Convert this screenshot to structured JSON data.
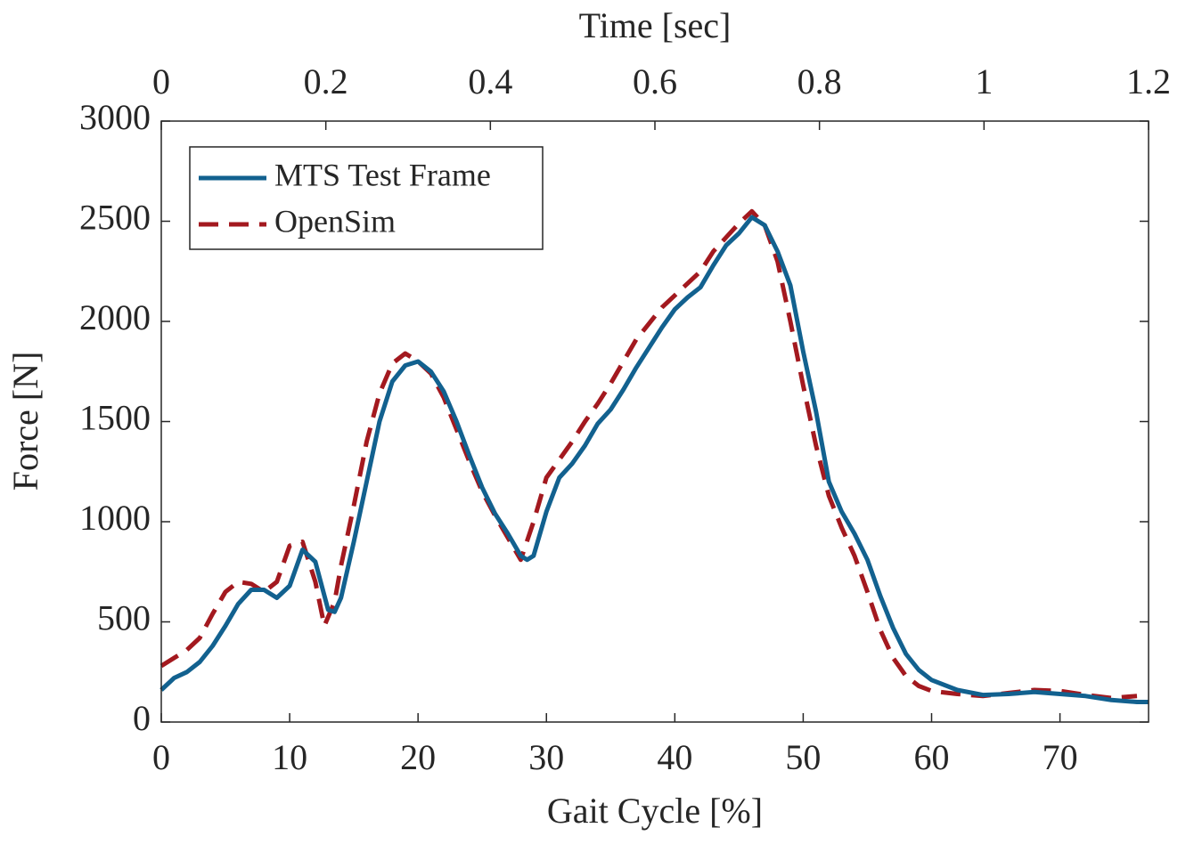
{
  "chart_data": {
    "type": "line",
    "x_label": "Gait Cycle [%]",
    "y_label": "Force [N]",
    "x2_label": "Time [sec]",
    "xlim": [
      0,
      76.9
    ],
    "xticks": [
      0,
      10,
      20,
      30,
      40,
      50,
      60,
      70
    ],
    "x2lim": [
      0,
      1.2
    ],
    "x2ticks": [
      0,
      0.2,
      0.4,
      0.6,
      0.8,
      1,
      1.2
    ],
    "ylim": [
      0,
      3000
    ],
    "yticks": [
      0,
      500,
      1000,
      1500,
      2000,
      2500,
      3000
    ],
    "legend": "upper left",
    "series": [
      {
        "name": "MTS Test Frame",
        "color": "#12618f",
        "dash": "solid",
        "x": [
          0,
          1,
          2,
          3,
          4,
          5,
          6,
          7,
          8,
          9,
          10,
          11,
          12,
          13,
          13.5,
          14,
          15,
          16,
          17,
          18,
          19,
          20,
          21,
          22,
          23,
          24,
          25,
          26,
          27,
          28,
          28.5,
          29,
          30,
          31,
          32,
          33,
          34,
          35,
          36,
          37,
          38,
          39,
          40,
          41,
          42,
          43,
          44,
          45,
          46,
          47,
          48,
          49,
          50,
          51,
          52,
          53,
          54,
          55,
          56,
          57,
          58,
          59,
          60,
          62,
          64,
          66,
          68,
          70,
          72,
          74,
          76,
          76.9
        ],
        "values": [
          160,
          220,
          250,
          300,
          380,
          480,
          590,
          660,
          660,
          620,
          680,
          860,
          800,
          560,
          550,
          620,
          900,
          1200,
          1500,
          1700,
          1780,
          1800,
          1750,
          1650,
          1500,
          1330,
          1170,
          1040,
          940,
          830,
          810,
          830,
          1050,
          1220,
          1290,
          1380,
          1490,
          1560,
          1660,
          1770,
          1870,
          1970,
          2060,
          2120,
          2170,
          2280,
          2380,
          2440,
          2520,
          2480,
          2350,
          2180,
          1850,
          1550,
          1200,
          1050,
          940,
          810,
          630,
          470,
          340,
          260,
          210,
          160,
          135,
          140,
          150,
          140,
          130,
          110,
          100,
          100
        ]
      },
      {
        "name": "OpenSim",
        "color": "#a3191f",
        "dash": "dashed",
        "x": [
          0,
          1,
          2,
          3,
          4,
          5,
          6,
          7,
          8,
          9,
          10,
          11,
          12,
          12.7,
          13.5,
          14,
          15,
          16,
          17,
          18,
          19,
          20,
          21,
          22,
          23,
          24,
          25,
          26,
          27,
          28,
          29,
          30,
          31,
          32,
          33,
          34,
          35,
          36,
          37,
          38,
          39,
          40,
          41,
          42,
          43,
          44,
          45,
          46,
          47,
          48,
          49,
          50,
          51,
          52,
          53,
          54,
          55,
          56,
          57,
          58,
          59,
          60,
          62,
          64,
          66,
          68,
          70,
          72,
          74,
          76
        ],
        "values": [
          280,
          320,
          360,
          420,
          540,
          650,
          700,
          690,
          650,
          700,
          880,
          900,
          700,
          480,
          600,
          780,
          1080,
          1400,
          1640,
          1790,
          1840,
          1800,
          1740,
          1620,
          1460,
          1300,
          1150,
          1030,
          920,
          810,
          1000,
          1220,
          1310,
          1400,
          1500,
          1590,
          1690,
          1800,
          1910,
          1990,
          2070,
          2130,
          2190,
          2250,
          2350,
          2420,
          2490,
          2550,
          2480,
          2300,
          2000,
          1680,
          1380,
          1130,
          970,
          830,
          650,
          460,
          320,
          230,
          180,
          155,
          140,
          130,
          145,
          160,
          155,
          135,
          120,
          130
        ]
      }
    ]
  }
}
